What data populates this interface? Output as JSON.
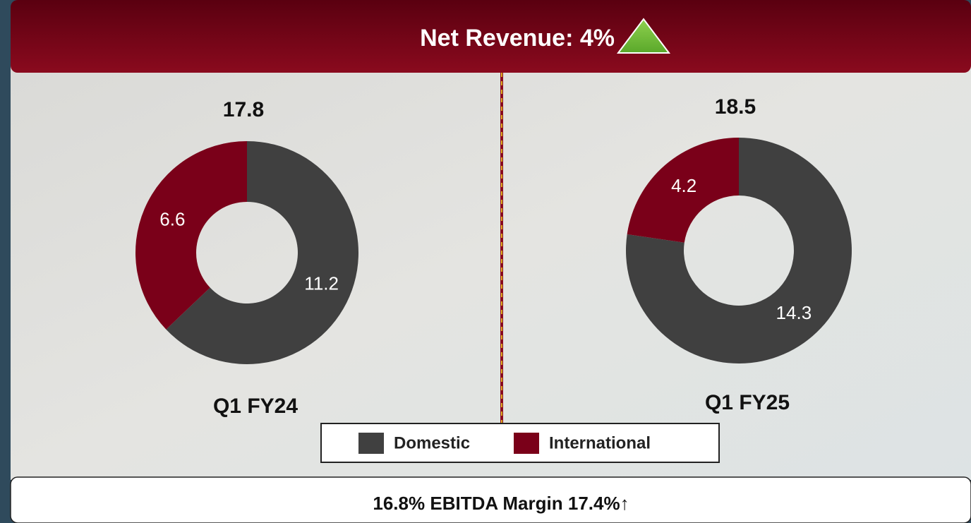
{
  "header": {
    "title": "Net Revenue: 4%"
  },
  "chart_data": [
    {
      "type": "donut",
      "title": 17.8,
      "label": "Q1 FY24",
      "categories": [
        "Domestic",
        "International"
      ],
      "values": [
        11.2,
        6.6
      ],
      "colors": [
        "#404040",
        "#7a0019"
      ]
    },
    {
      "type": "donut",
      "title": 18.5,
      "label": "Q1 FY25",
      "categories": [
        "Domestic",
        "International"
      ],
      "values": [
        14.3,
        4.2
      ],
      "colors": [
        "#404040",
        "#7a0019"
      ]
    }
  ],
  "footer": {
    "before": "16.8%",
    "metric": "EBITDA Margin",
    "after": "17.4%",
    "trend_arrow": "↑"
  }
}
